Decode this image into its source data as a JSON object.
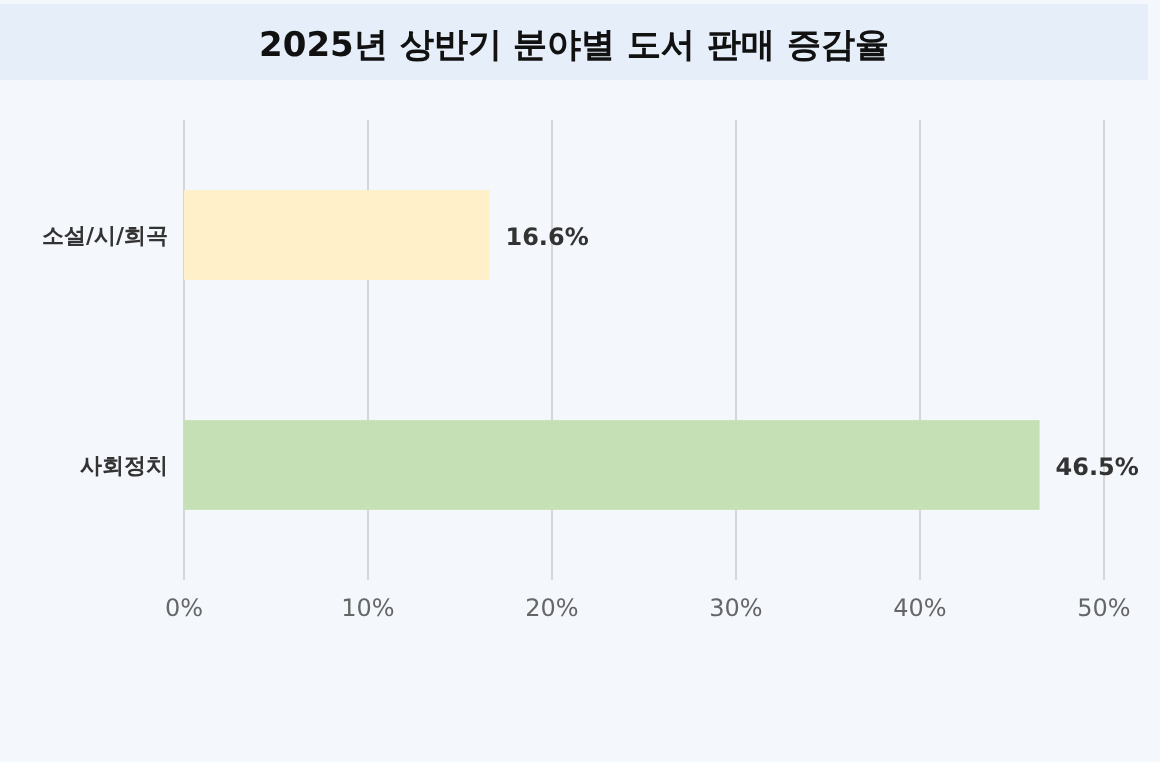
{
  "chart_data": {
    "type": "bar",
    "orientation": "horizontal",
    "title": "2025년 상반기 분야별 도서 판매 증감율",
    "categories": [
      "소설/시/희곡",
      "사회정치"
    ],
    "values": [
      16.6,
      46.5
    ],
    "colors": [
      "#fff0c9",
      "#c5e0b4"
    ],
    "value_labels": [
      "16.6%",
      "46.5%"
    ],
    "xlim": [
      0,
      50
    ],
    "xticks": [
      {
        "value": 0,
        "label": "0%"
      },
      {
        "value": 10,
        "label": "10%"
      },
      {
        "value": 20,
        "label": "20%"
      },
      {
        "value": 30,
        "label": "30%"
      },
      {
        "value": 40,
        "label": "40%"
      },
      {
        "value": 50,
        "label": "50%"
      }
    ],
    "grid": "x"
  }
}
